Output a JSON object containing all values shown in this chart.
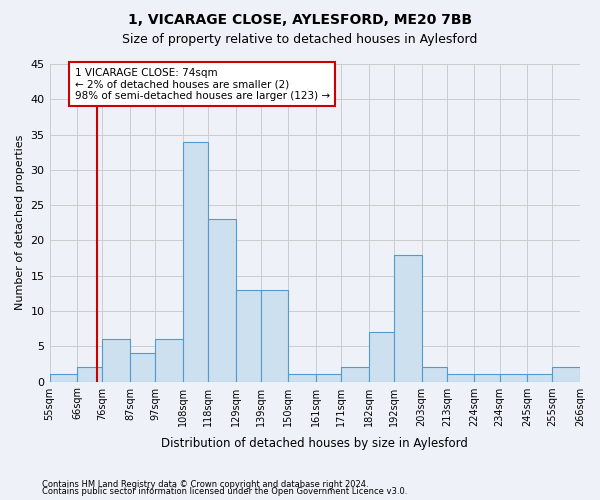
{
  "title1": "1, VICARAGE CLOSE, AYLESFORD, ME20 7BB",
  "title2": "Size of property relative to detached houses in Aylesford",
  "xlabel": "Distribution of detached houses by size in Aylesford",
  "ylabel": "Number of detached properties",
  "footnote1": "Contains HM Land Registry data © Crown copyright and database right 2024.",
  "footnote2": "Contains public sector information licensed under the Open Government Licence v3.0.",
  "bin_edges": [
    55,
    66,
    76,
    87,
    97,
    108,
    118,
    129,
    139,
    150,
    161,
    171,
    182,
    192,
    203,
    213,
    224,
    234,
    245,
    255,
    266
  ],
  "bar_values": [
    1,
    2,
    6,
    4,
    6,
    34,
    23,
    13,
    13,
    1,
    1,
    2,
    7,
    18,
    2,
    1,
    1,
    1,
    1,
    2
  ],
  "bar_facecolor": "#cce0f0",
  "bar_edgecolor": "#5599cc",
  "grid_color": "#cccccc",
  "vline_x": 74,
  "vline_color": "#cc0000",
  "annotation_text": "1 VICARAGE CLOSE: 74sqm\n← 2% of detached houses are smaller (2)\n98% of semi-detached houses are larger (123) →",
  "annotation_box_edgecolor": "#cc0000",
  "annotation_box_facecolor": "#ffffff",
  "ylim": [
    0,
    45
  ],
  "background_color": "#eef2f8",
  "tick_labels": [
    "55sqm",
    "66sqm",
    "76sqm",
    "87sqm",
    "97sqm",
    "108sqm",
    "118sqm",
    "129sqm",
    "139sqm",
    "150sqm",
    "161sqm",
    "171sqm",
    "182sqm",
    "192sqm",
    "203sqm",
    "213sqm",
    "224sqm",
    "234sqm",
    "245sqm",
    "255sqm",
    "266sqm"
  ],
  "yticks": [
    0,
    5,
    10,
    15,
    20,
    25,
    30,
    35,
    40,
    45
  ]
}
